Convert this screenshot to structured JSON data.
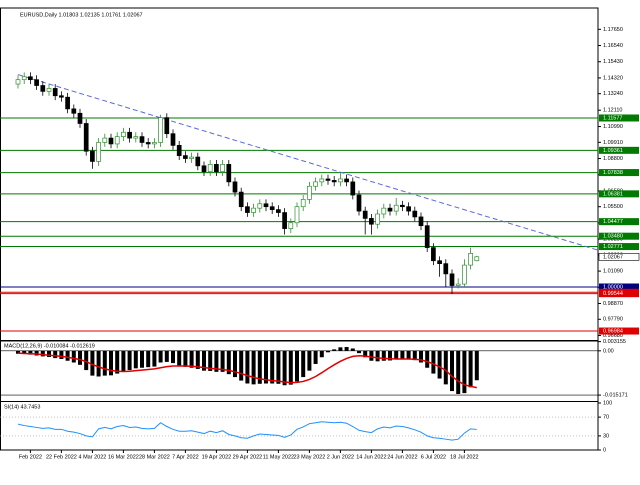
{
  "chart_data": [
    {
      "type": "candlestick",
      "title": "EURUSD,Daily  1.01803 1.02135 1.01761 1.02067",
      "categories": [
        null,
        null,
        "Feb 2022",
        null,
        null,
        null,
        null,
        "22 Feb 2022",
        null,
        null,
        null,
        null,
        "4 Mar 2022",
        null,
        null,
        null,
        null,
        "16 Mar 2022",
        null,
        null,
        null,
        null,
        "28 Mar 2022",
        null,
        null,
        null,
        null,
        "7 Apr 2022",
        null,
        null,
        null,
        null,
        "19 Apr 2022",
        null,
        null,
        null,
        null,
        "29 Apr 2022",
        null,
        null,
        null,
        null,
        "11 May 2022",
        null,
        null,
        null,
        null,
        "23 May 2022",
        null,
        null,
        null,
        null,
        "2 Jun 2022",
        null,
        null,
        null,
        null,
        "14 Jun 2022",
        null,
        null,
        null,
        null,
        "24 Jun 2022",
        null,
        null,
        null,
        null,
        "6 Jul 2022",
        null,
        null,
        null,
        null,
        "18 Jul 2022",
        null,
        null
      ],
      "open": [
        1.139,
        1.142,
        1.144,
        1.142,
        1.138,
        1.134,
        1.136,
        1.131,
        1.13,
        1.122,
        1.119,
        1.112,
        1.093,
        1.086,
        1.099,
        1.102,
        1.098,
        1.103,
        1.106,
        1.102,
        1.103,
        1.099,
        1.098,
        1.099,
        1.116,
        1.105,
        1.097,
        1.09,
        1.088,
        1.089,
        1.083,
        1.079,
        1.084,
        1.079,
        1.084,
        1.072,
        1.065,
        1.055,
        1.051,
        1.054,
        1.057,
        1.055,
        1.053,
        1.051,
        1.04,
        1.044,
        1.055,
        1.06,
        1.069,
        1.072,
        1.074,
        1.073,
        1.072,
        1.074,
        1.072,
        1.063,
        1.052,
        1.047,
        1.043,
        1.05,
        1.054,
        1.052,
        1.056,
        1.055,
        1.052,
        1.048,
        1.042,
        1.027,
        1.018,
        1.016,
        1.009,
        1.001,
        1.002,
        1.015,
        1.018
      ],
      "high": [
        1.145,
        1.147,
        1.147,
        1.145,
        1.141,
        1.139,
        1.139,
        1.134,
        1.133,
        1.125,
        1.122,
        1.115,
        1.096,
        1.102,
        1.105,
        1.105,
        1.106,
        1.109,
        1.109,
        1.106,
        1.106,
        1.102,
        1.102,
        1.118,
        1.119,
        1.108,
        1.1,
        1.093,
        1.092,
        1.092,
        1.086,
        1.087,
        1.087,
        1.087,
        1.087,
        1.075,
        1.068,
        1.058,
        1.057,
        1.06,
        1.06,
        1.058,
        1.056,
        1.054,
        1.047,
        1.058,
        1.063,
        1.072,
        1.075,
        1.077,
        1.077,
        1.076,
        1.078,
        1.077,
        1.075,
        1.066,
        1.055,
        1.05,
        1.053,
        1.057,
        1.057,
        1.061,
        1.059,
        1.058,
        1.055,
        1.051,
        1.045,
        1.03,
        1.021,
        1.019,
        1.012,
        1.006,
        1.019,
        1.027,
        1.0214
      ],
      "low": [
        1.136,
        1.139,
        1.139,
        1.135,
        1.131,
        1.131,
        1.128,
        1.127,
        1.119,
        1.116,
        1.109,
        1.09,
        1.081,
        1.083,
        1.096,
        1.095,
        1.095,
        1.1,
        1.099,
        1.099,
        1.096,
        1.095,
        1.095,
        1.096,
        1.102,
        1.094,
        1.087,
        1.085,
        1.085,
        1.08,
        1.076,
        1.076,
        1.076,
        1.076,
        1.069,
        1.062,
        1.052,
        1.048,
        1.048,
        1.051,
        1.052,
        1.05,
        1.048,
        1.036,
        1.037,
        1.041,
        1.052,
        1.057,
        1.066,
        1.069,
        1.07,
        1.069,
        1.069,
        1.069,
        1.06,
        1.049,
        1.036,
        1.036,
        1.04,
        1.047,
        1.049,
        1.049,
        1.052,
        1.049,
        1.045,
        1.039,
        1.024,
        1.015,
        1.007,
        1.0,
        0.9952,
        0.999,
        1.0,
        1.012,
        1.0176
      ],
      "close": [
        1.142,
        1.144,
        1.142,
        1.138,
        1.134,
        1.136,
        1.131,
        1.13,
        1.122,
        1.119,
        1.112,
        1.093,
        1.086,
        1.099,
        1.102,
        1.098,
        1.103,
        1.106,
        1.102,
        1.103,
        1.099,
        1.098,
        1.099,
        1.116,
        1.105,
        1.097,
        1.09,
        1.088,
        1.089,
        1.083,
        1.079,
        1.084,
        1.079,
        1.084,
        1.072,
        1.065,
        1.055,
        1.051,
        1.054,
        1.057,
        1.055,
        1.053,
        1.051,
        1.04,
        1.044,
        1.055,
        1.06,
        1.069,
        1.072,
        1.074,
        1.073,
        1.072,
        1.074,
        1.072,
        1.063,
        1.052,
        1.047,
        1.043,
        1.05,
        1.054,
        1.052,
        1.056,
        1.055,
        1.052,
        1.048,
        1.042,
        1.027,
        1.018,
        1.016,
        1.009,
        1.001,
        1.002,
        1.015,
        1.023,
        1.0207
      ],
      "up_color": "#2f8f2f",
      "down_color": "#000000",
      "ylim": [
        0.9637,
        1.1911
      ],
      "yticks": [
        {
          "value": 1.1765,
          "label": "1.17650"
        },
        {
          "value": 1.1654,
          "label": "1.16540"
        },
        {
          "value": 1.1543,
          "label": "1.15430"
        },
        {
          "value": 1.1432,
          "label": "1.14320"
        },
        {
          "value": 1.1324,
          "label": "1.13240"
        },
        {
          "value": 1.1211,
          "label": "1.12110"
        },
        {
          "value": 1.1099,
          "label": "1.10990"
        },
        {
          "value": 1.0991,
          "label": "1.09910"
        },
        {
          "value": 1.088,
          "label": "1.08800"
        },
        {
          "value": 1.0769,
          "label": "1.07690"
        },
        {
          "value": 1.0658,
          "label": "1.06580"
        },
        {
          "value": 1.055,
          "label": "1.05500"
        },
        {
          "value": 1.0439,
          "label": "1.04390"
        },
        {
          "value": 1.0328,
          "label": "1.03280"
        },
        {
          "value": 1.022,
          "label": "1.02200"
        },
        {
          "value": 1.0109,
          "label": "1.01090"
        },
        {
          "value": 0.9998,
          "label": "0.99980"
        },
        {
          "value": 0.9887,
          "label": "0.98870"
        },
        {
          "value": 0.9779,
          "label": "0.97790"
        },
        {
          "value": 0.9668,
          "label": "0.96680"
        }
      ],
      "levels": [
        {
          "value": 1.11577,
          "color": "#007a00"
        },
        {
          "value": 1.09361,
          "color": "#007a00"
        },
        {
          "value": 1.07838,
          "color": "#007a00"
        },
        {
          "value": 1.06381,
          "color": "#007a00"
        },
        {
          "value": 1.04477,
          "color": "#007a00"
        },
        {
          "value": 1.0348,
          "label": "1.03480",
          "color": "#007a00"
        },
        {
          "value": 1.02771,
          "color": "#007a00"
        },
        {
          "value": 1,
          "label": "1.00000",
          "color": "#000080"
        },
        {
          "value": 0.99637,
          "color": "#e00000"
        },
        {
          "value": 0.99544,
          "color": "#e00000"
        },
        {
          "value": 0.96984,
          "color": "#e00000"
        }
      ],
      "current_price": 1.02067,
      "trendline": {
        "x": [
          0,
          93.5
        ],
        "values": [
          1.1455,
          1.0253
        ],
        "color": "#5b6bd8"
      }
    },
    {
      "type": "bar",
      "title": "MACD(12,26,9) -0.010084 -0.012619",
      "histogram": {
        "color": "#000000",
        "values": [
          -0.001,
          -0.0011,
          -0.0013,
          -0.0016,
          -0.0019,
          -0.0021,
          -0.0025,
          -0.0028,
          -0.0034,
          -0.004,
          -0.0048,
          -0.0066,
          -0.0085,
          -0.0088,
          -0.0085,
          -0.0084,
          -0.0078,
          -0.007,
          -0.0066,
          -0.006,
          -0.0058,
          -0.0056,
          -0.0054,
          -0.004,
          -0.0038,
          -0.0042,
          -0.005,
          -0.0055,
          -0.0058,
          -0.0062,
          -0.0068,
          -0.0069,
          -0.0072,
          -0.0072,
          -0.008,
          -0.009,
          -0.0102,
          -0.0112,
          -0.0115,
          -0.0113,
          -0.0112,
          -0.0112,
          -0.0113,
          -0.0118,
          -0.0116,
          -0.0105,
          -0.009,
          -0.0068,
          -0.0045,
          -0.0022,
          -0.0005,
          0.0005,
          0.0012,
          0.0013,
          0.0008,
          -0.0008,
          -0.0022,
          -0.0034,
          -0.0036,
          -0.0034,
          -0.0033,
          -0.0028,
          -0.0027,
          -0.0028,
          -0.0032,
          -0.004,
          -0.0058,
          -0.0078,
          -0.0095,
          -0.0115,
          -0.0138,
          -0.0148,
          -0.0145,
          -0.0125,
          -0.010084
        ]
      },
      "signal": {
        "color": "#e00000",
        "values": [
          -0.0008,
          -0.0009,
          -0.001,
          -0.0011,
          -0.0013,
          -0.0015,
          -0.0017,
          -0.0019,
          -0.0022,
          -0.0026,
          -0.003,
          -0.0037,
          -0.0047,
          -0.0055,
          -0.0062,
          -0.0067,
          -0.007,
          -0.0071,
          -0.007,
          -0.0068,
          -0.0066,
          -0.0064,
          -0.0062,
          -0.0058,
          -0.0054,
          -0.0052,
          -0.0052,
          -0.0052,
          -0.0053,
          -0.0055,
          -0.0057,
          -0.006,
          -0.0062,
          -0.0064,
          -0.0067,
          -0.0072,
          -0.0078,
          -0.0085,
          -0.0091,
          -0.0096,
          -0.0099,
          -0.0102,
          -0.0104,
          -0.0107,
          -0.0109,
          -0.0108,
          -0.0105,
          -0.0098,
          -0.0088,
          -0.0075,
          -0.0061,
          -0.0048,
          -0.0036,
          -0.0026,
          -0.0019,
          -0.0017,
          -0.0018,
          -0.0021,
          -0.0024,
          -0.0026,
          -0.0027,
          -0.0028,
          -0.0028,
          -0.0028,
          -0.0029,
          -0.0031,
          -0.0037,
          -0.0045,
          -0.0055,
          -0.0067,
          -0.0088,
          -0.0104,
          -0.0116,
          -0.0122,
          -0.012619
        ]
      },
      "ylim": [
        -0.01686,
        0.00337
      ],
      "yticks": [
        0.003155,
        {
          "value": 0,
          "label": "0.00"
        },
        -0.015171
      ]
    },
    {
      "type": "line",
      "title": "SI(14) 43.7453",
      "color": "#1e90ff",
      "values": [
        55,
        52,
        50,
        48,
        46,
        47,
        44,
        44,
        40,
        38,
        35,
        30,
        28,
        45,
        48,
        45,
        50,
        52,
        48,
        49,
        46,
        45,
        46,
        58,
        50,
        44,
        40,
        40,
        41,
        38,
        35,
        40,
        37,
        41,
        33,
        30,
        26,
        25,
        30,
        34,
        33,
        32,
        31,
        27,
        32,
        44,
        49,
        56,
        58,
        60,
        59,
        58,
        59,
        57,
        50,
        42,
        39,
        37,
        45,
        49,
        47,
        51,
        50,
        47,
        43,
        38,
        30,
        26,
        25,
        23,
        21,
        23,
        36,
        45,
        43.7453
      ],
      "ylim": [
        0,
        100
      ],
      "yticks": [
        100,
        70,
        30,
        0
      ]
    }
  ]
}
